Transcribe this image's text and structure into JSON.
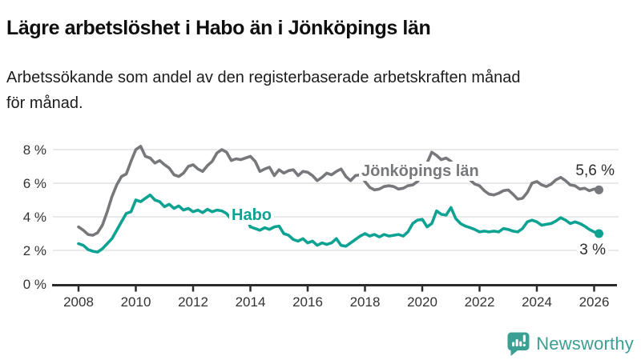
{
  "header": {
    "title": "Lägre arbetslöshet i Habo än i Jönköpings län",
    "subtitle": "Arbetssökande som andel av den registerbaserade arbetskraften månad för månad."
  },
  "chart_data": {
    "type": "line",
    "title": "Lägre arbetslöshet i Habo än i Jönköpings län",
    "ylabel": "",
    "xlabel": "",
    "y_unit": "%",
    "ylim": [
      0,
      8.6
    ],
    "xlim": [
      2007.8,
      2026.4
    ],
    "grid": true,
    "grid_color": "#dcdcdc",
    "axis_color": "#2b2b2b",
    "tick_label_color": "#333333",
    "end_label_color": "#2d2d2d",
    "yticks": [
      0,
      2,
      4,
      6,
      8
    ],
    "ytick_labels": [
      "0 %",
      "2 %",
      "4 %",
      "6 %",
      "8 %"
    ],
    "xticks": [
      2008,
      2010,
      2012,
      2014,
      2016,
      2018,
      2020,
      2022,
      2024,
      2026
    ],
    "xtick_labels": [
      "2008",
      "2010",
      "2012",
      "2014",
      "2016",
      "2018",
      "2020",
      "2022",
      "2024",
      "2026"
    ],
    "x_start": 2008,
    "x_step_years": 0.166667,
    "series": [
      {
        "name": "Jönköpings län",
        "color": "#77787B",
        "end_label": "5,6 %",
        "end_value": 5.6,
        "values": [
          3.4,
          3.2,
          2.95,
          2.9,
          3.05,
          3.5,
          4.3,
          5.2,
          5.9,
          6.4,
          6.55,
          7.3,
          8.0,
          8.2,
          7.6,
          7.5,
          7.2,
          7.35,
          7.1,
          6.9,
          6.5,
          6.4,
          6.6,
          7.0,
          7.1,
          6.85,
          6.7,
          7.05,
          7.3,
          7.8,
          8.0,
          7.85,
          7.35,
          7.45,
          7.4,
          7.5,
          7.6,
          7.3,
          6.7,
          6.85,
          6.95,
          6.45,
          6.8,
          6.6,
          6.75,
          6.8,
          6.45,
          6.7,
          6.65,
          6.45,
          6.15,
          6.35,
          6.6,
          6.5,
          6.7,
          6.85,
          6.4,
          6.15,
          6.45,
          6.5,
          6.1,
          5.75,
          5.6,
          5.65,
          5.8,
          5.85,
          5.8,
          5.65,
          5.7,
          5.85,
          5.9,
          6.1,
          6.5,
          7.2,
          7.85,
          7.65,
          7.4,
          7.5,
          7.3,
          7.0,
          6.7,
          6.45,
          6.2,
          5.95,
          5.85,
          5.55,
          5.35,
          5.3,
          5.4,
          5.55,
          5.6,
          5.35,
          5.05,
          5.1,
          5.45,
          6.0,
          6.1,
          5.9,
          5.8,
          5.95,
          6.2,
          6.35,
          6.15,
          5.9,
          5.85,
          5.65,
          5.7,
          5.55,
          5.65,
          5.6
        ]
      },
      {
        "name": "Habo",
        "color": "#0EA293",
        "end_label": "3 %",
        "end_value": 3.0,
        "values": [
          2.4,
          2.3,
          2.05,
          1.95,
          1.9,
          2.1,
          2.4,
          2.7,
          3.2,
          3.7,
          4.2,
          4.3,
          5.0,
          4.9,
          5.1,
          5.3,
          5.0,
          4.9,
          4.6,
          4.75,
          4.5,
          4.65,
          4.4,
          4.5,
          4.3,
          4.4,
          4.25,
          4.45,
          4.3,
          4.4,
          4.35,
          4.2,
          3.85,
          4.1,
          4.15,
          4.05,
          3.4,
          3.3,
          3.2,
          3.35,
          3.25,
          3.4,
          3.45,
          3.0,
          2.9,
          2.65,
          2.55,
          2.7,
          2.45,
          2.55,
          2.3,
          2.45,
          2.35,
          2.45,
          2.7,
          2.3,
          2.25,
          2.45,
          2.65,
          2.85,
          3.0,
          2.85,
          2.95,
          2.8,
          2.95,
          2.85,
          2.9,
          2.95,
          2.85,
          3.1,
          3.6,
          3.8,
          3.85,
          3.4,
          3.6,
          4.35,
          4.15,
          4.1,
          4.55,
          3.9,
          3.6,
          3.45,
          3.35,
          3.25,
          3.1,
          3.15,
          3.1,
          3.15,
          3.1,
          3.3,
          3.25,
          3.15,
          3.1,
          3.3,
          3.7,
          3.8,
          3.7,
          3.5,
          3.55,
          3.6,
          3.75,
          3.95,
          3.8,
          3.6,
          3.7,
          3.6,
          3.45,
          3.25,
          3.1,
          3.0
        ]
      }
    ]
  },
  "branding": {
    "name": "Newsworthy",
    "color": "#3AA093",
    "icon": "newsworthy-bar-chart-speech-bubble-icon"
  }
}
